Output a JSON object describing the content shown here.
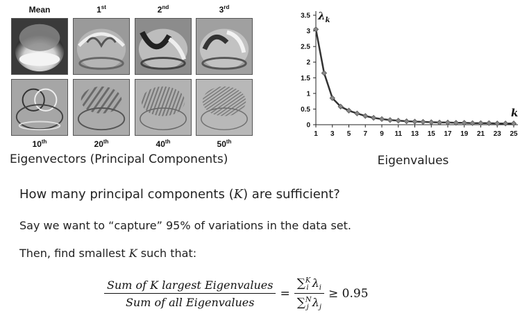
{
  "eigenvectors": {
    "top_labels": [
      {
        "base": "Mean",
        "sup": ""
      },
      {
        "base": "1",
        "sup": "st"
      },
      {
        "base": "2",
        "sup": "nd"
      },
      {
        "base": "3",
        "sup": "rd"
      }
    ],
    "bottom_labels": [
      {
        "base": "10",
        "sup": "th"
      },
      {
        "base": "20",
        "sup": "th"
      },
      {
        "base": "40",
        "sup": "th"
      },
      {
        "base": "50",
        "sup": "th"
      }
    ],
    "caption": "Eigenvectors (Principal Components)"
  },
  "chart_data": {
    "type": "line",
    "title": "",
    "xlabel": "k",
    "ylabel": "λk",
    "ylabel_symbol": "λ",
    "ylabel_sub": "k",
    "caption": "Eigenvalues",
    "x": [
      1,
      2,
      3,
      4,
      5,
      6,
      7,
      8,
      9,
      10,
      11,
      12,
      13,
      14,
      15,
      16,
      17,
      18,
      19,
      20,
      21,
      22,
      23,
      24,
      25
    ],
    "series": [
      {
        "values": [
          3.05,
          1.65,
          0.85,
          0.58,
          0.45,
          0.36,
          0.28,
          0.22,
          0.18,
          0.15,
          0.13,
          0.11,
          0.1,
          0.09,
          0.08,
          0.07,
          0.07,
          0.06,
          0.06,
          0.05,
          0.05,
          0.05,
          0.04,
          0.04,
          0.04
        ]
      }
    ],
    "xticks": [
      "1",
      "3",
      "5",
      "7",
      "9",
      "11",
      "13",
      "15",
      "17",
      "19",
      "21",
      "23",
      "25"
    ],
    "yticks": [
      "0",
      "0.5",
      "1",
      "1.5",
      "2",
      "2.5",
      "3",
      "3.5"
    ],
    "xlim": [
      1,
      25
    ],
    "ylim": [
      0,
      3.5
    ],
    "grid": false,
    "colors": {
      "line": "#333333",
      "marker": "#888888"
    }
  },
  "text": {
    "question_pre": "How many principal components (",
    "question_var": "K",
    "question_post": ") are sufficient?",
    "line2": "Say we want to “capture” 95% of variations in the data set.",
    "line3_pre": "Then, find smallest ",
    "line3_var": "K",
    "line3_post": " such that:"
  },
  "formula": {
    "numerator": "Sum of K largest Eigenvalues",
    "denominator": "Sum of all Eigenvalues",
    "eq": "=",
    "sum": "∑",
    "top_sub": "i",
    "top_sup": "K",
    "top_lambda": "λ",
    "top_lsub": "i",
    "bot_sub": "j",
    "bot_sup": "N",
    "bot_lambda": "λ",
    "bot_lsub": "j",
    "rel": "≥ 0.95"
  }
}
